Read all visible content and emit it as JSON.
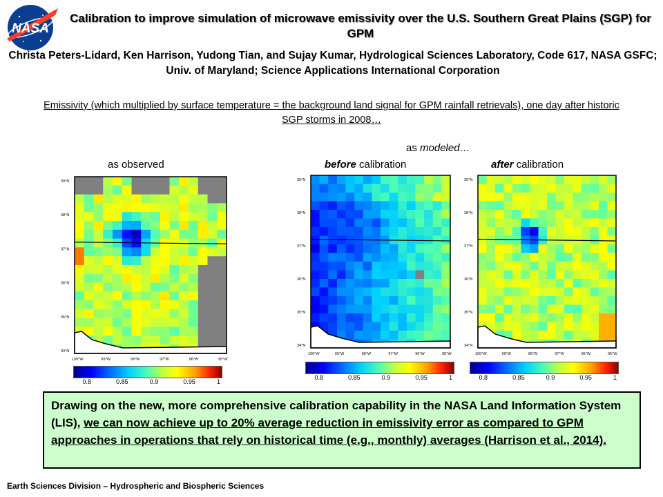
{
  "logo": {
    "text": "NASA",
    "icon": "nasa-meatball-logo"
  },
  "title": "Calibration to improve simulation of microwave emissivity over the U.S. Southern Great Plains (SGP) for GPM",
  "authors": "Christa Peters-Lidard, Ken Harrison, Yudong Tian, and Sujay Kumar, Hydrological Sciences Laboratory, Code 617, NASA GSFC; Univ. of Maryland; Science Applications International Corporation",
  "subtitle": "Emissivity (which multiplied by surface temperature = the background land signal for GPM rainfall retrievals),  one day after historic SGP storms in 2008…",
  "labels": {
    "as_modeled": "as modeled…",
    "as_observed": "as observed",
    "before_em": "before",
    "before_rest": " calibration",
    "after_em": "after",
    "after_rest": " calibration"
  },
  "maps": {
    "lat_ticks": [
      "39°N",
      "38°N",
      "37°N",
      "36°N",
      "35°N",
      "34°N"
    ],
    "lon_ticks": [
      "100°W",
      "99°W",
      "98°W",
      "97°W",
      "96°W",
      "95°W"
    ]
  },
  "colorbar": {
    "ticks": [
      "0.8",
      "0.85",
      "0.9",
      "0.95",
      "1"
    ],
    "range": [
      0.78,
      1.0
    ]
  },
  "summary": {
    "plain": "Drawing on the new, more comprehensive calibration capability in the NASA Land Information System (LIS), ",
    "underlined": "we can now achieve up to 20% average reduction in emissivity error as compared to GPM approaches in operations that rely on historical time (e.g., monthly) averages (Harrison et al., 2014)."
  },
  "footer": "Earth Sciences Division – Hydrospheric and Biospheric Sciences",
  "colors": {
    "summary_bg": "#ccffcc",
    "missing_data": "#808080"
  }
}
